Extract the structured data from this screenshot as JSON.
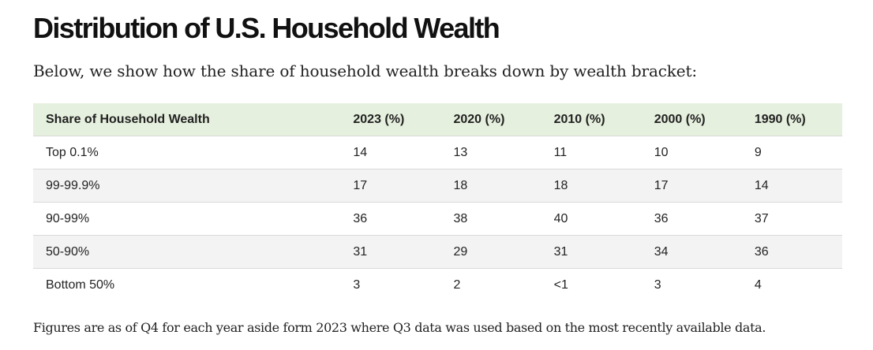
{
  "title": "Distribution of U.S. Household Wealth",
  "intro": "Below, we show how the share of household wealth breaks down by wealth bracket:",
  "table": {
    "headers": [
      "Share of Household Wealth",
      "2023 (%)",
      "2020 (%)",
      "2010 (%)",
      "2000 (%)",
      "1990 (%)"
    ],
    "rows": [
      [
        "Top 0.1%",
        "14",
        "13",
        "11",
        "10",
        "9"
      ],
      [
        "99-99.9%",
        "17",
        "18",
        "18",
        "17",
        "14"
      ],
      [
        "90-99%",
        "36",
        "38",
        "40",
        "36",
        "37"
      ],
      [
        "50-90%",
        "31",
        "29",
        "31",
        "34",
        "36"
      ],
      [
        "Bottom 50%",
        "3",
        "2",
        "<1",
        "3",
        "4"
      ]
    ]
  },
  "footnote": "Figures are as of Q4 for each year aside form 2023 where Q3 data was used based on the most recently available data."
}
